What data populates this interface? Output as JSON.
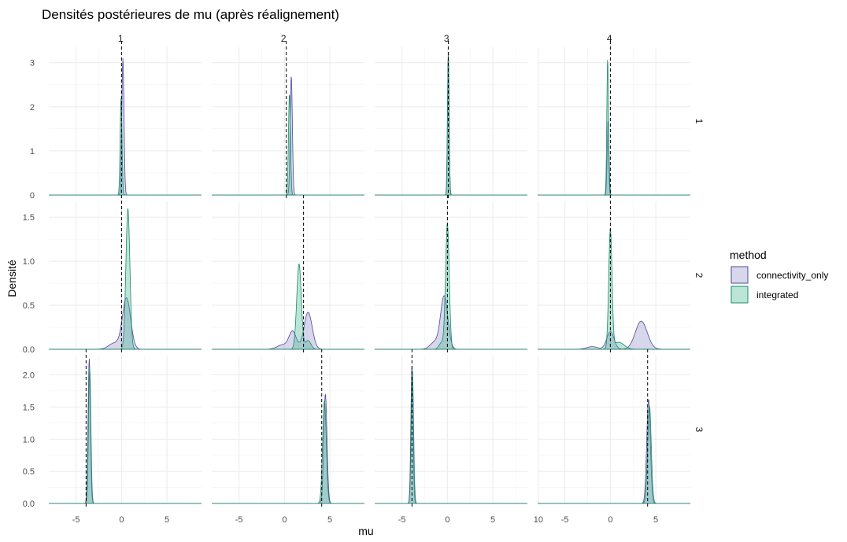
{
  "title": "Densités postérieures de mu (après réalignement)",
  "xlabel": "mu",
  "ylabel": "Densité",
  "legend": {
    "title": "method",
    "items": [
      {
        "label": "connectivity_only",
        "fill": "#8c89c5",
        "stroke": "#4e4a9a"
      },
      {
        "label": "integrated",
        "fill": "#3fb48e",
        "stroke": "#1a8a6a"
      }
    ]
  },
  "chart_data": {
    "type": "area",
    "facet_cols": [
      "1",
      "2",
      "3",
      "4"
    ],
    "facet_rows": [
      "1",
      "2",
      "3"
    ],
    "x_ticks": [
      [
        -5,
        0,
        5
      ],
      [
        -5,
        0,
        5
      ],
      [
        -5,
        0,
        5,
        10
      ],
      [
        -5,
        0,
        5
      ]
    ],
    "x_tick_labels": [
      [
        "-5",
        "0",
        "5"
      ],
      [
        "-5",
        "0",
        "5"
      ],
      [
        "-5",
        "0",
        "5",
        "10"
      ],
      [
        "-5",
        "0",
        "5"
      ]
    ],
    "xlim": [
      -8,
      8.8
    ],
    "rows": [
      {
        "ylim": [
          0,
          3.35
        ],
        "y_ticks": [
          0,
          1,
          2,
          3
        ],
        "y_tick_labels": [
          "0",
          "1",
          "2",
          "3"
        ]
      },
      {
        "ylim": [
          0,
          1.68
        ],
        "y_ticks": [
          0,
          0.5,
          1,
          1.5
        ],
        "y_tick_labels": [
          "0.0",
          "0.5",
          "1.0",
          "1.5"
        ]
      },
      {
        "ylim": [
          0,
          2.3
        ],
        "y_ticks": [
          0,
          0.5,
          1,
          1.5,
          2
        ],
        "y_tick_labels": [
          "0.0",
          "0.5",
          "1.0",
          "1.5",
          "2.0"
        ]
      }
    ],
    "panels": [
      {
        "row": "1",
        "col": "1",
        "vline": 0.0,
        "series": [
          {
            "name": "connectivity_only",
            "peaks": [
              {
                "mu": 0.15,
                "sd": 0.12,
                "h": 3.1
              }
            ]
          },
          {
            "name": "integrated",
            "peaks": [
              {
                "mu": -0.05,
                "sd": 0.1,
                "h": 2.2
              }
            ]
          }
        ]
      },
      {
        "row": "1",
        "col": "2",
        "vline": 0.2,
        "series": [
          {
            "name": "connectivity_only",
            "peaks": [
              {
                "mu": 0.75,
                "sd": 0.12,
                "h": 2.7
              }
            ]
          },
          {
            "name": "integrated",
            "peaks": [
              {
                "mu": 0.55,
                "sd": 0.11,
                "h": 2.3
              }
            ]
          }
        ]
      },
      {
        "row": "1",
        "col": "3",
        "vline": 0.1,
        "series": [
          {
            "name": "connectivity_only",
            "peaks": [
              {
                "mu": 0.1,
                "sd": 0.09,
                "h": 3.25
              }
            ]
          },
          {
            "name": "integrated",
            "peaks": [
              {
                "mu": 0.1,
                "sd": 0.09,
                "h": 3.2
              }
            ]
          }
        ]
      },
      {
        "row": "1",
        "col": "4",
        "vline": 0.0,
        "series": [
          {
            "name": "connectivity_only",
            "peaks": [
              {
                "mu": -0.25,
                "sd": 0.1,
                "h": 1.7
              }
            ]
          },
          {
            "name": "integrated",
            "peaks": [
              {
                "mu": -0.3,
                "sd": 0.09,
                "h": 3.1
              }
            ]
          }
        ]
      },
      {
        "row": "2",
        "col": "1",
        "vline": 0.0,
        "series": [
          {
            "name": "connectivity_only",
            "peaks": [
              {
                "mu": 0.55,
                "sd": 0.45,
                "h": 0.58
              },
              {
                "mu": -0.8,
                "sd": 0.6,
                "h": 0.07
              }
            ]
          },
          {
            "name": "integrated",
            "peaks": [
              {
                "mu": 0.7,
                "sd": 0.22,
                "h": 1.6
              }
            ]
          }
        ]
      },
      {
        "row": "2",
        "col": "2",
        "vline": 2.1,
        "series": [
          {
            "name": "connectivity_only",
            "peaks": [
              {
                "mu": 2.6,
                "sd": 0.45,
                "h": 0.42
              },
              {
                "mu": 0.9,
                "sd": 0.4,
                "h": 0.2
              },
              {
                "mu": -0.2,
                "sd": 0.6,
                "h": 0.05
              }
            ]
          },
          {
            "name": "integrated",
            "peaks": [
              {
                "mu": 1.6,
                "sd": 0.25,
                "h": 0.97
              },
              {
                "mu": 2.6,
                "sd": 0.3,
                "h": 0.1
              }
            ]
          }
        ]
      },
      {
        "row": "2",
        "col": "3",
        "vline": 0.0,
        "series": [
          {
            "name": "connectivity_only",
            "peaks": [
              {
                "mu": -0.35,
                "sd": 0.4,
                "h": 0.6
              },
              {
                "mu": -1.4,
                "sd": 0.5,
                "h": 0.08
              }
            ]
          },
          {
            "name": "integrated",
            "peaks": [
              {
                "mu": 0.0,
                "sd": 0.2,
                "h": 1.42
              },
              {
                "mu": -0.6,
                "sd": 0.3,
                "h": 0.08
              }
            ]
          }
        ]
      },
      {
        "row": "2",
        "col": "4",
        "vline": 0.0,
        "series": [
          {
            "name": "connectivity_only",
            "peaks": [
              {
                "mu": 3.4,
                "sd": 0.65,
                "h": 0.32
              },
              {
                "mu": 0.0,
                "sd": 0.4,
                "h": 0.2
              },
              {
                "mu": -2.0,
                "sd": 0.6,
                "h": 0.03
              }
            ]
          },
          {
            "name": "integrated",
            "peaks": [
              {
                "mu": 0.0,
                "sd": 0.18,
                "h": 1.35
              },
              {
                "mu": 0.9,
                "sd": 0.6,
                "h": 0.08
              }
            ]
          }
        ]
      },
      {
        "row": "3",
        "col": "1",
        "vline": -3.9,
        "series": [
          {
            "name": "connectivity_only",
            "peaks": [
              {
                "mu": -3.55,
                "sd": 0.13,
                "h": 2.25
              }
            ]
          },
          {
            "name": "integrated",
            "peaks": [
              {
                "mu": -3.5,
                "sd": 0.13,
                "h": 2.1
              }
            ]
          }
        ]
      },
      {
        "row": "3",
        "col": "2",
        "vline": 4.1,
        "series": [
          {
            "name": "connectivity_only",
            "peaks": [
              {
                "mu": 4.5,
                "sd": 0.18,
                "h": 1.7
              }
            ]
          },
          {
            "name": "integrated",
            "peaks": [
              {
                "mu": 4.4,
                "sd": 0.2,
                "h": 1.6
              }
            ]
          }
        ]
      },
      {
        "row": "3",
        "col": "3",
        "vline": -3.9,
        "series": [
          {
            "name": "connectivity_only",
            "peaks": [
              {
                "mu": -3.9,
                "sd": 0.12,
                "h": 2.15
              }
            ]
          },
          {
            "name": "integrated",
            "peaks": [
              {
                "mu": -3.85,
                "sd": 0.13,
                "h": 2.05
              }
            ]
          }
        ]
      },
      {
        "row": "3",
        "col": "4",
        "vline": 4.1,
        "series": [
          {
            "name": "connectivity_only",
            "peaks": [
              {
                "mu": 4.2,
                "sd": 0.2,
                "h": 1.62
              }
            ]
          },
          {
            "name": "integrated",
            "peaks": [
              {
                "mu": 4.3,
                "sd": 0.2,
                "h": 1.52
              }
            ]
          }
        ]
      }
    ]
  }
}
